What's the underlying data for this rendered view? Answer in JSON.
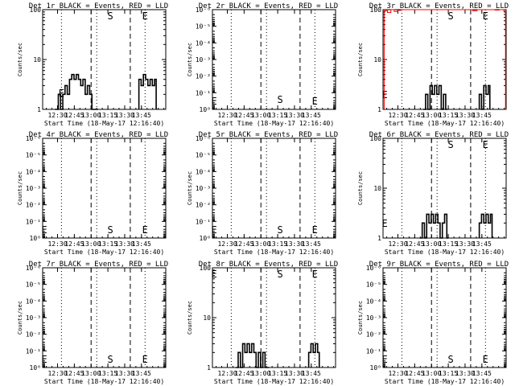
{
  "chart_data": [
    {
      "type": "line",
      "title": "Det 1r BLACK = Events, RED = LLD",
      "xlabel": "Start Time (18-May-17 12:16:40)",
      "ylabel": "Counts/sec",
      "y_scale": "log",
      "ylim": [
        1,
        100
      ],
      "y_ticks": [
        {
          "v": 1,
          "t": "1"
        },
        {
          "v": 10,
          "t": "10"
        },
        {
          "v": 100,
          "t": "100"
        }
      ],
      "x_tick_labels": [
        "12:30",
        "12:45",
        "13:00",
        "13:15",
        "13:30",
        "13:45"
      ],
      "markers": [
        {
          "label": "E",
          "x_min": 16.8
        },
        {
          "label": "S",
          "x_min": 60.5
        },
        {
          "label": "E",
          "x_min": 91.5
        }
      ],
      "series": [
        {
          "color": "#000000",
          "x_min": [
            11,
            14,
            16,
            18,
            20,
            22,
            24,
            26,
            28,
            30,
            32,
            34,
            36,
            38,
            40,
            42,
            44,
            46,
            48,
            86,
            88,
            90,
            92,
            94,
            96,
            98,
            100
          ],
          "y": [
            1,
            2,
            1,
            2,
            3,
            2,
            4,
            5,
            4,
            5,
            4,
            3,
            4,
            2,
            3,
            2,
            1,
            1,
            1,
            4,
            3,
            5,
            4,
            3,
            4,
            3,
            4
          ]
        }
      ]
    },
    {
      "type": "line",
      "title": "Det 2r BLACK = Events, RED = LLD",
      "xlabel": "Start Time (18-May-17 12:16:40)",
      "ylabel": "Counts/sec",
      "y_scale": "log",
      "ylim": [
        1,
        1e-06
      ],
      "y_ticks": [
        {
          "v": 1,
          "t": "10⁰"
        },
        {
          "v": 0.1,
          "t": "10⁻¹"
        },
        {
          "v": 0.01,
          "t": "10⁻²"
        },
        {
          "v": 0.001,
          "t": "10⁻³"
        },
        {
          "v": 0.0001,
          "t": "10⁻⁴"
        },
        {
          "v": 1e-05,
          "t": "10⁻⁵"
        },
        {
          "v": 1e-06,
          "t": "10⁻⁶"
        }
      ],
      "x_tick_labels": [
        "12:30",
        "12:45",
        "13:00",
        "13:15",
        "13:30",
        "13:45"
      ],
      "markers": [
        {
          "label": "E",
          "x_min": 1.5
        },
        {
          "label": "S",
          "x_min": 60.5
        },
        {
          "label": "E",
          "x_min": 91.5
        }
      ],
      "series": []
    },
    {
      "type": "line",
      "title": "Det 3r BLACK = Events, RED = LLD",
      "xlabel": "Start Time (18-May-17 12:16:40)",
      "ylabel": "Counts/sec",
      "y_scale": "log",
      "ylim": [
        1,
        100
      ],
      "y_ticks": [
        {
          "v": 1,
          "t": "1"
        },
        {
          "v": 10,
          "t": "10"
        },
        {
          "v": 100,
          "t": "100"
        }
      ],
      "x_tick_labels": [
        "12:30",
        "12:45",
        "13:00",
        "13:15",
        "13:30",
        "13:45"
      ],
      "markers": [
        {
          "label": "E",
          "x_min": 1.5
        },
        {
          "label": "S",
          "x_min": 60.5
        },
        {
          "label": "E",
          "x_min": 91.5
        }
      ],
      "series": [
        {
          "color": "#000000",
          "x_min": [
            36,
            38,
            40,
            42,
            44,
            46,
            48,
            50,
            52,
            54,
            56,
            86,
            88,
            90,
            92,
            94
          ],
          "y": [
            1,
            2,
            1,
            3,
            2,
            3,
            2,
            3,
            1,
            2,
            1,
            2,
            1,
            3,
            2,
            3
          ]
        },
        {
          "color": "#ff0000",
          "x_min": [
            1,
            4,
            7,
            10,
            13,
            16,
            20,
            24,
            28,
            32,
            36,
            40,
            44,
            48,
            52,
            56,
            60,
            64,
            68,
            72,
            76,
            80,
            84,
            88,
            92,
            96,
            100,
            104,
            108
          ],
          "y": [
            95,
            88,
            100,
            92,
            97,
            100,
            100,
            100,
            100,
            100,
            100,
            100,
            100,
            100,
            100,
            100,
            100,
            100,
            100,
            100,
            100,
            95,
            100,
            100,
            100,
            100,
            98,
            100,
            93
          ]
        }
      ]
    },
    {
      "type": "line",
      "title": "Det 4r BLACK = Events, RED = LLD",
      "xlabel": "Start Time (18-May-17 12:16:40)",
      "ylabel": "Counts/sec",
      "y_scale": "log",
      "ylim": [
        1,
        1e-06
      ],
      "y_ticks": [
        {
          "v": 1,
          "t": "10⁰"
        },
        {
          "v": 0.1,
          "t": "10⁻¹"
        },
        {
          "v": 0.01,
          "t": "10⁻²"
        },
        {
          "v": 0.001,
          "t": "10⁻³"
        },
        {
          "v": 0.0001,
          "t": "10⁻⁴"
        },
        {
          "v": 1e-05,
          "t": "10⁻⁵"
        },
        {
          "v": 1e-06,
          "t": "10⁻⁶"
        }
      ],
      "x_tick_labels": [
        "12:30",
        "12:45",
        "13:00",
        "13:15",
        "13:30",
        "13:45"
      ],
      "markers": [
        {
          "label": "E",
          "x_min": 1.5
        },
        {
          "label": "S",
          "x_min": 60.5
        },
        {
          "label": "E",
          "x_min": 91.5
        }
      ],
      "series": []
    },
    {
      "type": "line",
      "title": "Det 5r BLACK = Events, RED = LLD",
      "xlabel": "Start Time (18-May-17 12:16:40)",
      "ylabel": "Counts/sec",
      "y_scale": "log",
      "ylim": [
        1,
        1e-06
      ],
      "y_ticks": [
        {
          "v": 1,
          "t": "10⁰"
        },
        {
          "v": 0.1,
          "t": "10⁻¹"
        },
        {
          "v": 0.01,
          "t": "10⁻²"
        },
        {
          "v": 0.001,
          "t": "10⁻³"
        },
        {
          "v": 0.0001,
          "t": "10⁻⁴"
        },
        {
          "v": 1e-05,
          "t": "10⁻⁵"
        },
        {
          "v": 1e-06,
          "t": "10⁻⁶"
        }
      ],
      "x_tick_labels": [
        "12:30",
        "12:45",
        "13:00",
        "13:15",
        "13:30",
        "13:45"
      ],
      "markers": [
        {
          "label": "E",
          "x_min": 1.5
        },
        {
          "label": "S",
          "x_min": 60.5
        },
        {
          "label": "E",
          "x_min": 91.5
        }
      ],
      "series": []
    },
    {
      "type": "line",
      "title": "Det 6r BLACK = Events, RED = LLD",
      "xlabel": "Start Time (18-May-17 12:16:40)",
      "ylabel": "Counts/sec",
      "y_scale": "log",
      "ylim": [
        1,
        100
      ],
      "y_ticks": [
        {
          "v": 1,
          "t": "1"
        },
        {
          "v": 10,
          "t": "10"
        },
        {
          "v": 100,
          "t": "100"
        }
      ],
      "x_tick_labels": [
        "12:30",
        "12:45",
        "13:00",
        "13:15",
        "13:30",
        "13:45"
      ],
      "markers": [
        {
          "label": "E",
          "x_min": 1.5
        },
        {
          "label": "S",
          "x_min": 60.5
        },
        {
          "label": "E",
          "x_min": 91.5
        }
      ],
      "series": [
        {
          "color": "#000000",
          "x_min": [
            33,
            35,
            37,
            39,
            41,
            43,
            45,
            47,
            49,
            51,
            53,
            55,
            57,
            86,
            88,
            90,
            92,
            94,
            96
          ],
          "y": [
            1,
            2,
            1,
            3,
            2,
            3,
            2,
            3,
            2,
            1,
            2,
            3,
            1,
            2,
            3,
            2,
            3,
            2,
            3
          ]
        }
      ]
    },
    {
      "type": "line",
      "title": "Det 7r BLACK = Events, RED = LLD",
      "xlabel": "Start Time (18-May-17 12:16:40)",
      "ylabel": "Counts/sec",
      "y_scale": "log",
      "ylim": [
        1,
        1e-06
      ],
      "y_ticks": [
        {
          "v": 1,
          "t": "10⁰"
        },
        {
          "v": 0.1,
          "t": "10⁻¹"
        },
        {
          "v": 0.01,
          "t": "10⁻²"
        },
        {
          "v": 0.001,
          "t": "10⁻³"
        },
        {
          "v": 0.0001,
          "t": "10⁻⁴"
        },
        {
          "v": 1e-05,
          "t": "10⁻⁵"
        },
        {
          "v": 1e-06,
          "t": "10⁻⁶"
        }
      ],
      "x_tick_labels": [
        "12:30",
        "12:45",
        "13:00",
        "13:15",
        "13:30",
        "13:45"
      ],
      "markers": [
        {
          "label": "E",
          "x_min": 1.5
        },
        {
          "label": "S",
          "x_min": 60.5
        },
        {
          "label": "E",
          "x_min": 91.5
        }
      ],
      "series": []
    },
    {
      "type": "line",
      "title": "Det 8r BLACK = Events, RED = LLD",
      "xlabel": "Start Time (18-May-17 12:16:40)",
      "ylabel": "Counts/sec",
      "y_scale": "log",
      "ylim": [
        1,
        100
      ],
      "y_ticks": [
        {
          "v": 1,
          "t": "1"
        },
        {
          "v": 10,
          "t": "10"
        },
        {
          "v": 100,
          "t": "100"
        }
      ],
      "x_tick_labels": [
        "12:30",
        "12:45",
        "13:00",
        "13:15",
        "13:30",
        "13:45"
      ],
      "markers": [
        {
          "label": "E",
          "x_min": 1.5
        },
        {
          "label": "S",
          "x_min": 60.5
        },
        {
          "label": "E",
          "x_min": 91.5
        }
      ],
      "series": [
        {
          "color": "#000000",
          "x_min": [
            21,
            23,
            25,
            27,
            29,
            31,
            33,
            35,
            37,
            39,
            41,
            43,
            45,
            47,
            49,
            86,
            88,
            90,
            92,
            94
          ],
          "y": [
            1,
            2,
            1,
            3,
            2,
            3,
            2,
            3,
            2,
            1,
            2,
            1,
            2,
            1,
            1,
            2,
            3,
            2,
            3,
            2
          ]
        }
      ]
    },
    {
      "type": "line",
      "title": "Det 9r BLACK = Events, RED = LLD",
      "xlabel": "Start Time (18-May-17 12:16:40)",
      "ylabel": "Counts/sec",
      "y_scale": "log",
      "ylim": [
        1,
        1e-06
      ],
      "y_ticks": [
        {
          "v": 1,
          "t": "10⁰"
        },
        {
          "v": 0.1,
          "t": "10⁻¹"
        },
        {
          "v": 0.01,
          "t": "10⁻²"
        },
        {
          "v": 0.001,
          "t": "10⁻³"
        },
        {
          "v": 0.0001,
          "t": "10⁻⁴"
        },
        {
          "v": 1e-05,
          "t": "10⁻⁵"
        },
        {
          "v": 1e-06,
          "t": "10⁻⁶"
        }
      ],
      "x_tick_labels": [
        "12:30",
        "12:45",
        "13:00",
        "13:15",
        "13:30",
        "13:45"
      ],
      "markers": [
        {
          "label": "E",
          "x_min": 1.5
        },
        {
          "label": "S",
          "x_min": 60.5
        },
        {
          "label": "E",
          "x_min": 91.5
        }
      ],
      "series": []
    }
  ]
}
